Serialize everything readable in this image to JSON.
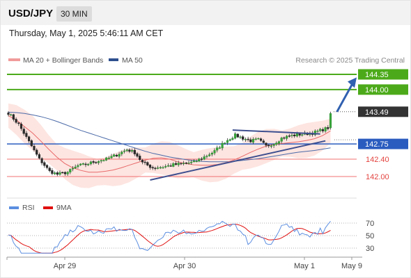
{
  "header": {
    "pair": "USD/JPY",
    "timeframe": "30 MIN"
  },
  "datetime": "Thursday, May 1, 2025 5:46:11 AM CET",
  "legend": {
    "ma20": "MA 20 + Bollinger Bands",
    "ma50": "MA 50",
    "research": "Research © 2025 Trading Central"
  },
  "colors": {
    "resistance": "#4caa1a",
    "pivot": "#2a5cbf",
    "support": "#e3433f",
    "current": "#333333",
    "ma20": "#e86a6a",
    "ma50": "#4a6aa8",
    "bollinger_fill": "#fde0dc",
    "rsi": "#5b8ee0",
    "rsi_ma": "#e01010"
  },
  "chart_data": [
    {
      "type": "candlestick",
      "instrument": "USD/JPY",
      "timeframe": "30 MIN",
      "x_labels": [
        "Apr 29",
        "Apr 30",
        "May 1",
        "May 9"
      ],
      "y_range": [
        141.75,
        144.55
      ],
      "levels": [
        {
          "role": "resistance",
          "value": 144.35,
          "label": "144.35"
        },
        {
          "role": "resistance",
          "value": 144.0,
          "label": "144.00"
        },
        {
          "role": "current",
          "value": 143.49,
          "label": "143.49"
        },
        {
          "role": "pivot",
          "value": 142.75,
          "label": "142.75"
        },
        {
          "role": "support",
          "value": 142.4,
          "label": "142.40"
        },
        {
          "role": "support",
          "value": 142.0,
          "label": "142.00"
        }
      ],
      "series": [
        {
          "name": "MA 50",
          "values": [
            143.48,
            143.47,
            143.45,
            143.42,
            143.38,
            143.33,
            143.27,
            143.2,
            143.13,
            143.06,
            143.0,
            142.94,
            142.88,
            142.82,
            142.76,
            142.7,
            142.64,
            142.58,
            142.53,
            142.49,
            142.45,
            142.42,
            142.39,
            142.37,
            142.35,
            142.34,
            142.34,
            142.34,
            142.35,
            142.37,
            142.39,
            142.41,
            142.44,
            142.47,
            142.5,
            142.53,
            142.56,
            142.58,
            142.6,
            142.63,
            142.66
          ]
        },
        {
          "name": "MA 20",
          "values": [
            143.4,
            143.3,
            143.15,
            143.0,
            142.82,
            142.63,
            142.45,
            142.3,
            142.2,
            142.14,
            142.1,
            142.1,
            142.12,
            142.15,
            142.2,
            142.26,
            142.32,
            142.38,
            142.42,
            142.43,
            142.4,
            142.34,
            142.3,
            142.27,
            142.26,
            142.26,
            142.28,
            142.32,
            142.38,
            142.46,
            142.55,
            142.63,
            142.7,
            142.74,
            142.76,
            142.78,
            142.8,
            142.83,
            142.87,
            142.94,
            143.05
          ]
        }
      ],
      "annotations": [
        "ascending triangle",
        "upward arrow toward 144.35"
      ]
    },
    {
      "type": "line",
      "indicator": "RSI",
      "series": [
        {
          "name": "RSI"
        },
        {
          "name": "9MA"
        }
      ],
      "y_ticks": [
        70,
        50,
        30
      ],
      "x_labels": [
        "Apr 29",
        "Apr 30",
        "May 1",
        "May 9"
      ]
    }
  ]
}
